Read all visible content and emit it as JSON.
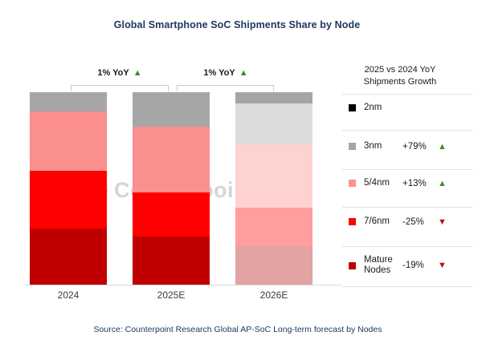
{
  "title": "Global Smartphone SoC Shipments Share by Node",
  "source": "Source: Counterpoint Research Global AP-SoC Long-term forecast by Nodes",
  "watermark": {
    "text": "Counterpoint"
  },
  "annotations": [
    {
      "label": "1% YoY",
      "direction": "up",
      "between": [
        "2024",
        "2025E"
      ]
    },
    {
      "label": "1% YoY",
      "direction": "up",
      "between": [
        "2025E",
        "2026E"
      ]
    }
  ],
  "legend": {
    "header_line1": "2025 vs 2024 YoY",
    "header_line2": "Shipments Growth",
    "rows": [
      {
        "label": "2nm",
        "color": "#000000",
        "value": "",
        "direction": ""
      },
      {
        "label": "3nm",
        "color": "#a6a6a6",
        "value": "+79%",
        "direction": "up"
      },
      {
        "label": "5/4nm",
        "color": "#fa9190",
        "value": "+13%",
        "direction": "up"
      },
      {
        "label": "7/6nm",
        "color": "#fe0000",
        "value": "-25%",
        "direction": "down"
      },
      {
        "label": "Mature Nodes",
        "color": "#c00000",
        "value": "-19%",
        "direction": "down"
      }
    ]
  },
  "colors": {
    "title_navy": "#1f3864",
    "up_green": "#3d8b27",
    "down_red": "#b31312",
    "bracket_gray": "#c9c9c9"
  },
  "chart_data": {
    "type": "bar",
    "stacked": true,
    "unit": "percent share of shipments",
    "title": "Global Smartphone SoC Shipments Share by Node",
    "categories": [
      "2024",
      "2025E",
      "2026E"
    ],
    "series": [
      {
        "name": "2nm",
        "values": [
          0,
          0,
          6
        ],
        "color": "#000000",
        "faded_color": "#a4a4a4"
      },
      {
        "name": "3nm",
        "values": [
          10,
          18,
          21
        ],
        "color": "#a6a6a6",
        "faded_color": "#dcdcdc"
      },
      {
        "name": "5/4nm",
        "values": [
          31,
          34,
          33
        ],
        "color": "#fa8f8e",
        "faded_color": "#ffd2d2"
      },
      {
        "name": "7/6nm",
        "values": [
          30,
          23,
          20
        ],
        "color": "#fe0000",
        "faded_color": "#ff9e9c"
      },
      {
        "name": "Mature Nodes",
        "values": [
          29,
          25,
          20
        ],
        "color": "#c00000",
        "faded_color": "#e2a4a3"
      }
    ],
    "faded_category_index": 2,
    "ylim": [
      0,
      100
    ],
    "grid": false,
    "legend_position": "right",
    "annotations": [
      "1% YoY up between 2024 and 2025E",
      "1% YoY up between 2025E and 2026E"
    ]
  }
}
